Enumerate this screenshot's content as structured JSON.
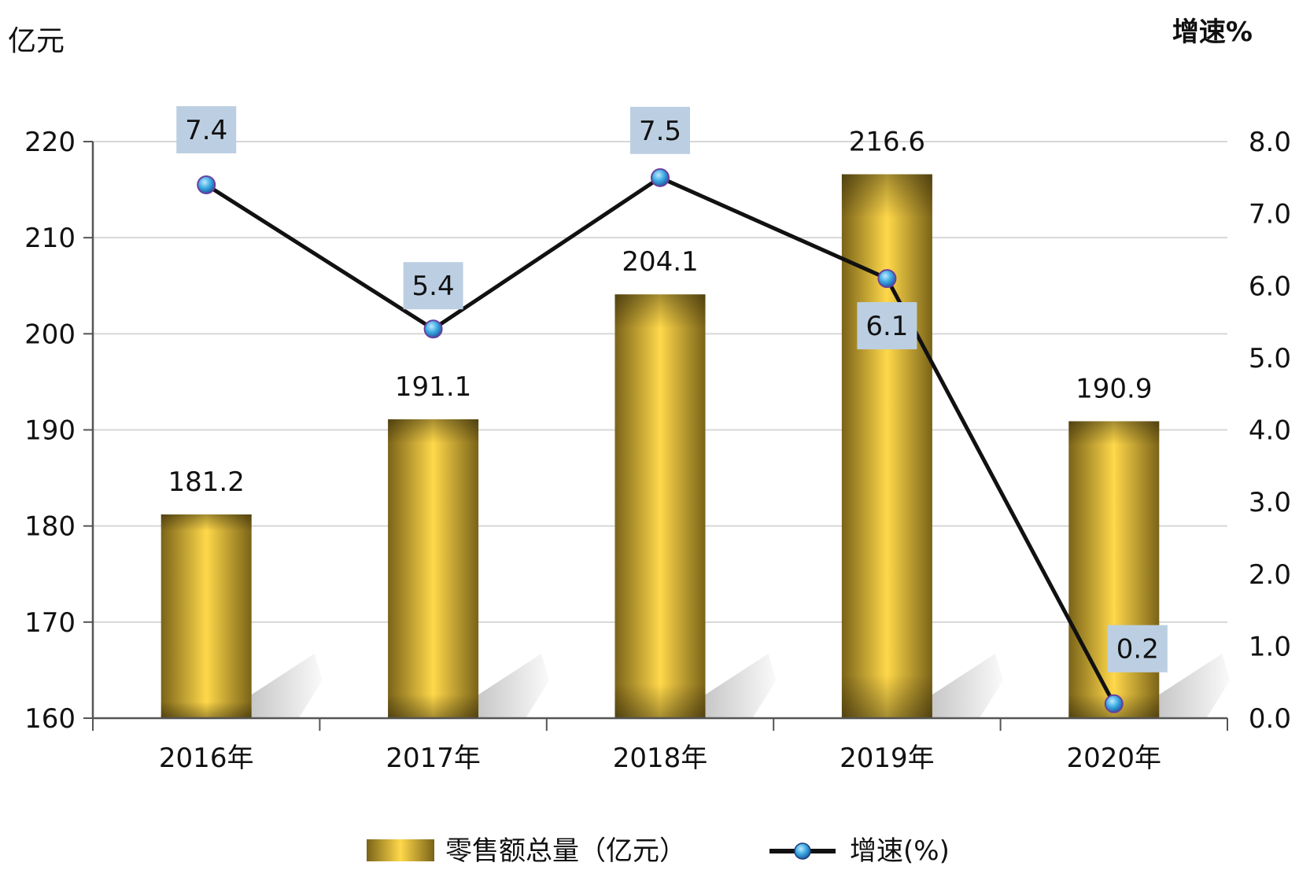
{
  "chart_data": {
    "type": "bar",
    "categories": [
      "2016年",
      "2017年",
      "2018年",
      "2019年",
      "2020年"
    ],
    "y_left_unit": "亿元",
    "y_right_unit": "增速%",
    "y_left_range": [
      160,
      220
    ],
    "y_left_ticks": [
      "160",
      "170",
      "180",
      "190",
      "200",
      "210",
      "220"
    ],
    "y_right_range": [
      0,
      8
    ],
    "y_right_ticks": [
      "0.0",
      "1.0",
      "2.0",
      "3.0",
      "4.0",
      "5.0",
      "6.0",
      "7.0",
      "8.0"
    ],
    "grid": true,
    "legend_position": "bottom",
    "series": [
      {
        "name": "零售额总量（亿元）",
        "type": "bar",
        "axis": "left",
        "values": [
          181.2,
          191.1,
          204.1,
          216.6,
          190.9
        ],
        "labels": [
          "181.2",
          "191.1",
          "204.1",
          "216.6",
          "190.9"
        ],
        "color": "#d4b43a"
      },
      {
        "name": "增速(%)",
        "type": "line",
        "axis": "right",
        "values": [
          7.4,
          5.4,
          7.5,
          6.1,
          0.2
        ],
        "labels": [
          "7.4",
          "5.4",
          "7.5",
          "6.1",
          "0.2"
        ],
        "color": "#111111",
        "marker_color": "#3aa9e0"
      }
    ],
    "colors": {
      "bar_dark": "#7a6318",
      "bar_mid": "#c9a630",
      "bar_light": "#ffd84a",
      "label_box": "#bccfe2",
      "grid": "#d7d7d7",
      "axis": "#555555"
    }
  }
}
